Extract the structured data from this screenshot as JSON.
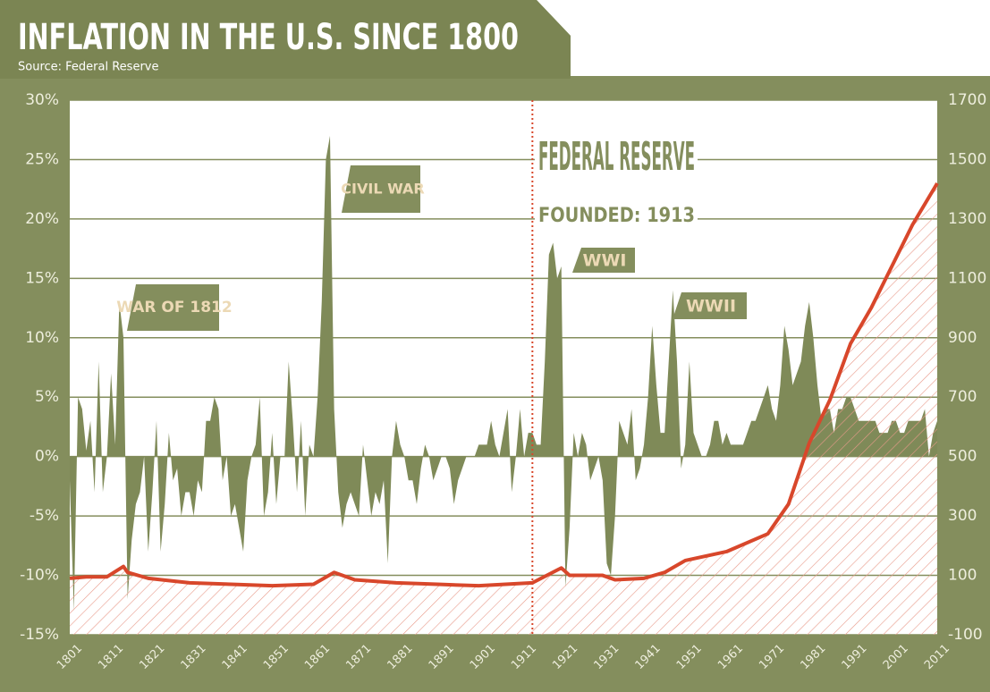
{
  "chart_data": {
    "type": "area_line",
    "title": "INFLATION IN THE U.S. SINCE 1800",
    "subtitle": "Source: Federal Reserve",
    "annotations": [
      "WAR OF 1812",
      "CIVIL WAR",
      "WWI",
      "WWII",
      "FEDERAL RESERVE",
      "FOUNDED: 1913"
    ],
    "marker_year": 1913,
    "xlim": [
      1801,
      2011
    ],
    "xticks": [
      1801,
      1811,
      1821,
      1831,
      1841,
      1851,
      1861,
      1871,
      1881,
      1891,
      1901,
      1911,
      1921,
      1931,
      1941,
      1951,
      1961,
      1971,
      1981,
      1991,
      2001,
      2011
    ],
    "ylim": [
      -15,
      30
    ],
    "yticks": [
      {
        "value": 30,
        "label": "30%"
      },
      {
        "value": 25,
        "label": "25%"
      },
      {
        "value": 20,
        "label": "20%"
      },
      {
        "value": 15,
        "label": "15%"
      },
      {
        "value": 10,
        "label": "10%"
      },
      {
        "value": 5,
        "label": "5%"
      },
      {
        "value": 0,
        "label": "0%"
      },
      {
        "value": -5,
        "label": "-5%"
      },
      {
        "value": -10,
        "label": "-10%"
      },
      {
        "value": -15,
        "label": "-15%"
      }
    ],
    "y2lim": [
      -100,
      1700
    ],
    "y2ticks": [
      1700,
      1500,
      1300,
      1100,
      900,
      700,
      500,
      300,
      100,
      -100
    ],
    "grid": true,
    "series": [
      {
        "kind": "area",
        "color": "#7f8a58",
        "x": [
          1801,
          1802,
          1803,
          1804,
          1805,
          1806,
          1807,
          1808,
          1809,
          1810,
          1811,
          1812,
          1813,
          1814,
          1815,
          1816,
          1817,
          1818,
          1819,
          1820,
          1821,
          1822,
          1823,
          1824,
          1825,
          1826,
          1827,
          1828,
          1829,
          1830,
          1831,
          1832,
          1833,
          1834,
          1835,
          1836,
          1837,
          1838,
          1839,
          1840,
          1841,
          1842,
          1843,
          1844,
          1845,
          1846,
          1847,
          1848,
          1849,
          1850,
          1851,
          1852,
          1853,
          1854,
          1855,
          1856,
          1857,
          1858,
          1859,
          1860,
          1861,
          1862,
          1863,
          1864,
          1865,
          1866,
          1867,
          1868,
          1869,
          1870,
          1871,
          1872,
          1873,
          1874,
          1875,
          1876,
          1877,
          1878,
          1879,
          1880,
          1881,
          1882,
          1883,
          1884,
          1885,
          1886,
          1887,
          1888,
          1889,
          1890,
          1891,
          1892,
          1893,
          1894,
          1895,
          1896,
          1897,
          1898,
          1899,
          1900,
          1901,
          1902,
          1903,
          1904,
          1905,
          1906,
          1907,
          1908,
          1909,
          1910,
          1911,
          1912,
          1913,
          1914,
          1915,
          1916,
          1917,
          1918,
          1919,
          1920,
          1921,
          1922,
          1923,
          1924,
          1925,
          1926,
          1927,
          1928,
          1929,
          1930,
          1931,
          1932,
          1933,
          1934,
          1935,
          1936,
          1937,
          1938,
          1939,
          1940,
          1941,
          1942,
          1943,
          1944,
          1945,
          1946,
          1947,
          1948,
          1949,
          1950,
          1951,
          1952,
          1953,
          1954,
          1955,
          1956,
          1957,
          1958,
          1959,
          1960,
          1961,
          1962,
          1963,
          1964,
          1965,
          1966,
          1967,
          1968,
          1969,
          1970,
          1971,
          1972,
          1973,
          1974,
          1975,
          1976,
          1977,
          1978,
          1979,
          1980,
          1981,
          1982,
          1983,
          1984,
          1985,
          1986,
          1987,
          1988,
          1989,
          1990,
          1991,
          1992,
          1993,
          1994,
          1995,
          1996,
          1997,
          1998,
          1999,
          2000,
          2001,
          2002,
          2003,
          2004,
          2005,
          2006,
          2007,
          2008,
          2009,
          2010,
          2011
        ],
        "values": [
          -2,
          -13,
          5,
          4,
          0.5,
          3,
          -3,
          8,
          -3,
          0,
          7,
          1,
          13,
          10,
          -12,
          -7,
          -4,
          -3,
          0,
          -8,
          -3,
          3,
          -8,
          -4,
          2,
          -2,
          -1,
          -5,
          -3,
          -3,
          -5,
          -2,
          -3,
          3,
          3,
          5,
          4,
          -2,
          0,
          -5,
          -4,
          -6,
          -8,
          -2,
          0,
          1,
          5,
          -5,
          -3,
          2,
          -4,
          0,
          0,
          8,
          3,
          -3,
          3,
          -5,
          1,
          0,
          5,
          13,
          25,
          27,
          4,
          -3,
          -6,
          -4,
          -3,
          -4,
          -5,
          1,
          -2,
          -5,
          -3,
          -4,
          -2,
          -9,
          0,
          3,
          1,
          0,
          -2,
          -2,
          -4,
          -1,
          1,
          0,
          -2,
          -1,
          0,
          0,
          -1,
          -4,
          -2,
          -1,
          0,
          0,
          0,
          1,
          1,
          1,
          3,
          1,
          0,
          2,
          4,
          -3,
          0,
          4,
          0,
          2,
          2,
          1,
          1,
          8,
          17,
          18,
          15,
          16,
          -11,
          -6,
          2,
          0,
          2,
          1,
          -2,
          -1,
          0,
          -2,
          -9,
          -10,
          -5,
          3,
          2,
          1,
          4,
          -2,
          -1,
          1,
          5,
          11,
          6,
          2,
          2,
          8,
          14,
          8,
          -1,
          1,
          8,
          2,
          1,
          0,
          0,
          1,
          3,
          3,
          1,
          2,
          1,
          1,
          1,
          1,
          2,
          3,
          3,
          4,
          5,
          6,
          4,
          3,
          6,
          11,
          9,
          6,
          7,
          8,
          11,
          13,
          10,
          6,
          3,
          4,
          4,
          2,
          4,
          4,
          5,
          5,
          4,
          3,
          3,
          3,
          3,
          3,
          2,
          2,
          2,
          3,
          3,
          2,
          2,
          3,
          3,
          3,
          3,
          4,
          0,
          2,
          3
        ]
      },
      {
        "kind": "line",
        "color": "#d8472b",
        "axis": "y2",
        "x": [
          1801,
          1805,
          1810,
          1814,
          1815,
          1820,
          1830,
          1840,
          1850,
          1860,
          1865,
          1870,
          1880,
          1890,
          1900,
          1913,
          1920,
          1922,
          1930,
          1933,
          1940,
          1945,
          1950,
          1960,
          1970,
          1975,
          1980,
          1985,
          1990,
          1995,
          2000,
          2005,
          2011
        ],
        "values": [
          90,
          95,
          95,
          130,
          110,
          90,
          75,
          70,
          65,
          70,
          110,
          85,
          75,
          70,
          65,
          75,
          125,
          100,
          100,
          85,
          90,
          110,
          150,
          180,
          240,
          340,
          545,
          690,
          880,
          1000,
          1140,
          1280,
          1420
        ]
      }
    ]
  }
}
